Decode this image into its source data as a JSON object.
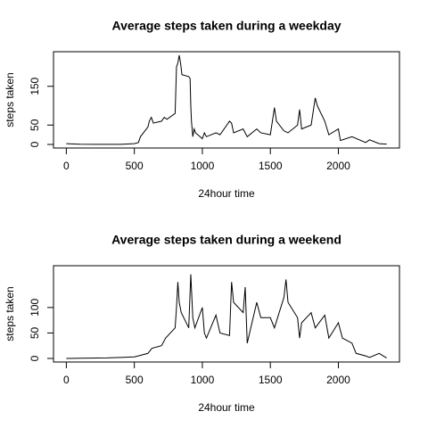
{
  "chart_data": [
    {
      "type": "line",
      "title": "Average steps taken during a weekday",
      "x_label": "24hour time",
      "y_label": "steps taken",
      "color": "#000000",
      "x": [
        0,
        100,
        200,
        300,
        400,
        500,
        530,
        545,
        600,
        610,
        625,
        640,
        700,
        720,
        740,
        800,
        810,
        820,
        830,
        840,
        850,
        900,
        910,
        915,
        920,
        930,
        940,
        950,
        1000,
        1015,
        1030,
        1100,
        1130,
        1200,
        1215,
        1230,
        1300,
        1330,
        1400,
        1430,
        1500,
        1530,
        1545,
        1600,
        1630,
        1700,
        1715,
        1730,
        1800,
        1830,
        1845,
        1900,
        1930,
        2000,
        2015,
        2100,
        2200,
        2230,
        2300,
        2355
      ],
      "values": [
        2,
        0.5,
        0.3,
        0.2,
        0.3,
        2,
        5,
        20,
        45,
        60,
        70,
        55,
        60,
        70,
        65,
        80,
        200,
        210,
        230,
        210,
        180,
        175,
        170,
        100,
        60,
        20,
        40,
        30,
        15,
        30,
        20,
        30,
        25,
        60,
        55,
        30,
        40,
        20,
        40,
        30,
        25,
        95,
        60,
        35,
        30,
        50,
        90,
        40,
        50,
        120,
        100,
        60,
        25,
        40,
        10,
        20,
        5,
        12,
        2,
        1
      ],
      "xlim": [
        -94.2,
        2449.2
      ],
      "xticks": [
        0,
        500,
        1000,
        1500,
        2000
      ],
      "ylim": [
        -9.2,
        239.2
      ],
      "yticks": [
        0,
        50,
        150
      ]
    },
    {
      "type": "line",
      "title": "Average steps taken during a weekend",
      "x_label": "24hour time",
      "y_label": "steps taken",
      "color": "#000000",
      "x": [
        0,
        100,
        300,
        400,
        500,
        530,
        600,
        630,
        700,
        730,
        800,
        810,
        820,
        830,
        845,
        900,
        915,
        930,
        945,
        1000,
        1015,
        1030,
        1100,
        1130,
        1200,
        1215,
        1230,
        1300,
        1315,
        1330,
        1400,
        1430,
        1500,
        1530,
        1600,
        1615,
        1630,
        1700,
        1715,
        1730,
        1800,
        1830,
        1900,
        1930,
        2000,
        2030,
        2100,
        2130,
        2200,
        2230,
        2300,
        2330,
        2355
      ],
      "values": [
        0,
        0.5,
        1,
        2,
        3,
        5,
        10,
        20,
        25,
        40,
        60,
        100,
        150,
        110,
        90,
        60,
        165,
        80,
        60,
        100,
        50,
        40,
        85,
        50,
        45,
        150,
        110,
        90,
        140,
        30,
        110,
        80,
        80,
        60,
        120,
        155,
        110,
        80,
        40,
        70,
        90,
        60,
        85,
        40,
        70,
        40,
        30,
        10,
        5,
        2,
        10,
        5,
        1
      ],
      "xlim": [
        -94.2,
        2449.2
      ],
      "xticks": [
        0,
        500,
        1000,
        1500,
        2000
      ],
      "ylim": [
        -7,
        182
      ],
      "yticks": [
        0,
        50,
        100
      ]
    }
  ]
}
